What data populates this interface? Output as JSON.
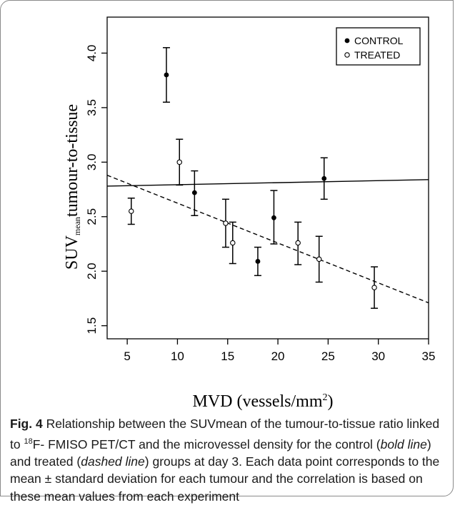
{
  "chart_data": {
    "type": "scatter",
    "xlabel": "MVD (vessels/mm²)",
    "ylabel_main": "SUV",
    "ylabel_sub": "mean",
    "ylabel_rest": "tumour-to-tissue",
    "xlim": [
      3,
      35
    ],
    "ylim": [
      1.38,
      4.33
    ],
    "x_ticks": [
      "5",
      "10",
      "15",
      "20",
      "25",
      "30",
      "35"
    ],
    "y_ticks": [
      "1.5",
      "2.0",
      "2.5",
      "3.0",
      "3.5",
      "4.0"
    ],
    "legend_position": "top-right",
    "grid": false,
    "series": [
      {
        "name": "CONTROL",
        "marker": "filled-circle",
        "points": [
          {
            "x": 8.9,
            "y": 3.8,
            "err_low": 3.55,
            "err_high": 4.05
          },
          {
            "x": 11.7,
            "y": 2.72,
            "err_low": 2.51,
            "err_high": 2.92
          },
          {
            "x": 18.0,
            "y": 2.09,
            "err_low": 1.96,
            "err_high": 2.22
          },
          {
            "x": 19.6,
            "y": 2.49,
            "err_low": 2.25,
            "err_high": 2.74
          },
          {
            "x": 24.6,
            "y": 2.85,
            "err_low": 2.66,
            "err_high": 3.04
          }
        ],
        "fit": {
          "style": "solid",
          "x": [
            3,
            35
          ],
          "y": [
            2.78,
            2.84
          ]
        }
      },
      {
        "name": "TREATED",
        "marker": "open-circle",
        "points": [
          {
            "x": 5.4,
            "y": 2.55,
            "err_low": 2.43,
            "err_high": 2.67
          },
          {
            "x": 10.2,
            "y": 3.0,
            "err_low": 2.79,
            "err_high": 3.21
          },
          {
            "x": 14.8,
            "y": 2.44,
            "err_low": 2.22,
            "err_high": 2.66
          },
          {
            "x": 15.5,
            "y": 2.26,
            "err_low": 2.07,
            "err_high": 2.45
          },
          {
            "x": 22.0,
            "y": 2.26,
            "err_low": 2.06,
            "err_high": 2.45
          },
          {
            "x": 24.1,
            "y": 2.11,
            "err_low": 1.9,
            "err_high": 2.32
          },
          {
            "x": 29.6,
            "y": 1.85,
            "err_low": 1.66,
            "err_high": 2.04
          }
        ],
        "fit": {
          "style": "dashed",
          "x": [
            3,
            35
          ],
          "y": [
            2.88,
            1.71
          ]
        }
      }
    ]
  },
  "caption": {
    "fig_label": "Fig. 4",
    "text_1": "  Relationship between the SUVmean of the tumour-to-tissue ratio linked to ",
    "superscript": "18",
    "text_2": "F- FMISO PET/CT and the microvessel density for the control (",
    "italic_1": "bold line",
    "text_3": ") and treated (",
    "italic_2": "dashed line",
    "text_4": ") groups at day 3. Each data point corresponds to the mean ± standard deviation for each tumour and the correlation is based on these mean values from each experiment"
  }
}
